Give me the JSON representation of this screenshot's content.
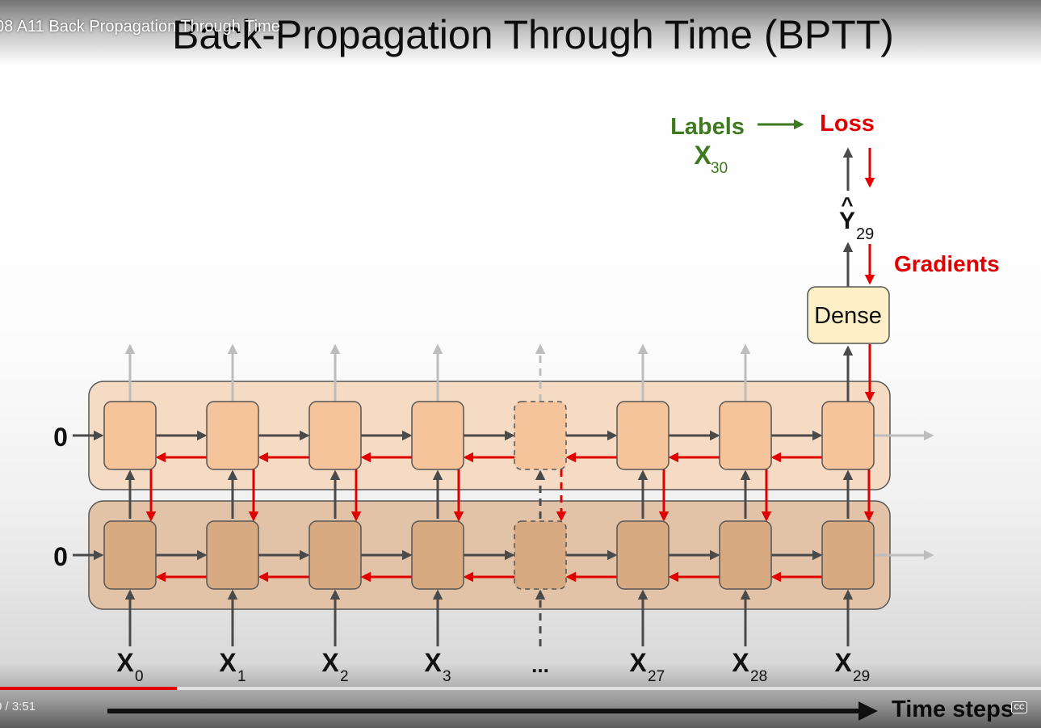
{
  "player": {
    "video_title": "08 A11 Back Propagation Through Time",
    "time_display": "0 / 3:51",
    "progress_played": 0.17,
    "progress_loaded": 1.0,
    "cc_label": "CC"
  },
  "slide": {
    "title": "Back-Propagation Through Time (BPTT)",
    "labels": {
      "text": "Labels",
      "symbol": "X",
      "subscript": "30"
    },
    "loss": "Loss",
    "prediction": {
      "symbol": "Y",
      "hat": "^",
      "subscript": "29"
    },
    "gradients": "Gradients",
    "dense": "Dense",
    "initial_states": [
      "0",
      "0"
    ],
    "inputs": [
      {
        "symbol": "X",
        "subscript": "0"
      },
      {
        "symbol": "X",
        "subscript": "1"
      },
      {
        "symbol": "X",
        "subscript": "2"
      },
      {
        "symbol": "X",
        "subscript": "3"
      },
      {
        "symbol": "...",
        "subscript": ""
      },
      {
        "symbol": "X",
        "subscript": "27"
      },
      {
        "symbol": "X",
        "subscript": "28"
      },
      {
        "symbol": "X",
        "subscript": "29"
      }
    ],
    "time_steps": "Time steps",
    "colors": {
      "forward": "#4a4a4a",
      "backward": "#e00000",
      "labels": "#3d7a1f",
      "faded": "#bdbdbd",
      "cell_top": "#f6c49a",
      "cell_bottom": "#d8aa82",
      "layer_top": "#f5dac4",
      "layer_bottom": "#e2c3a8",
      "dense_fill": "#fdefc7"
    }
  }
}
